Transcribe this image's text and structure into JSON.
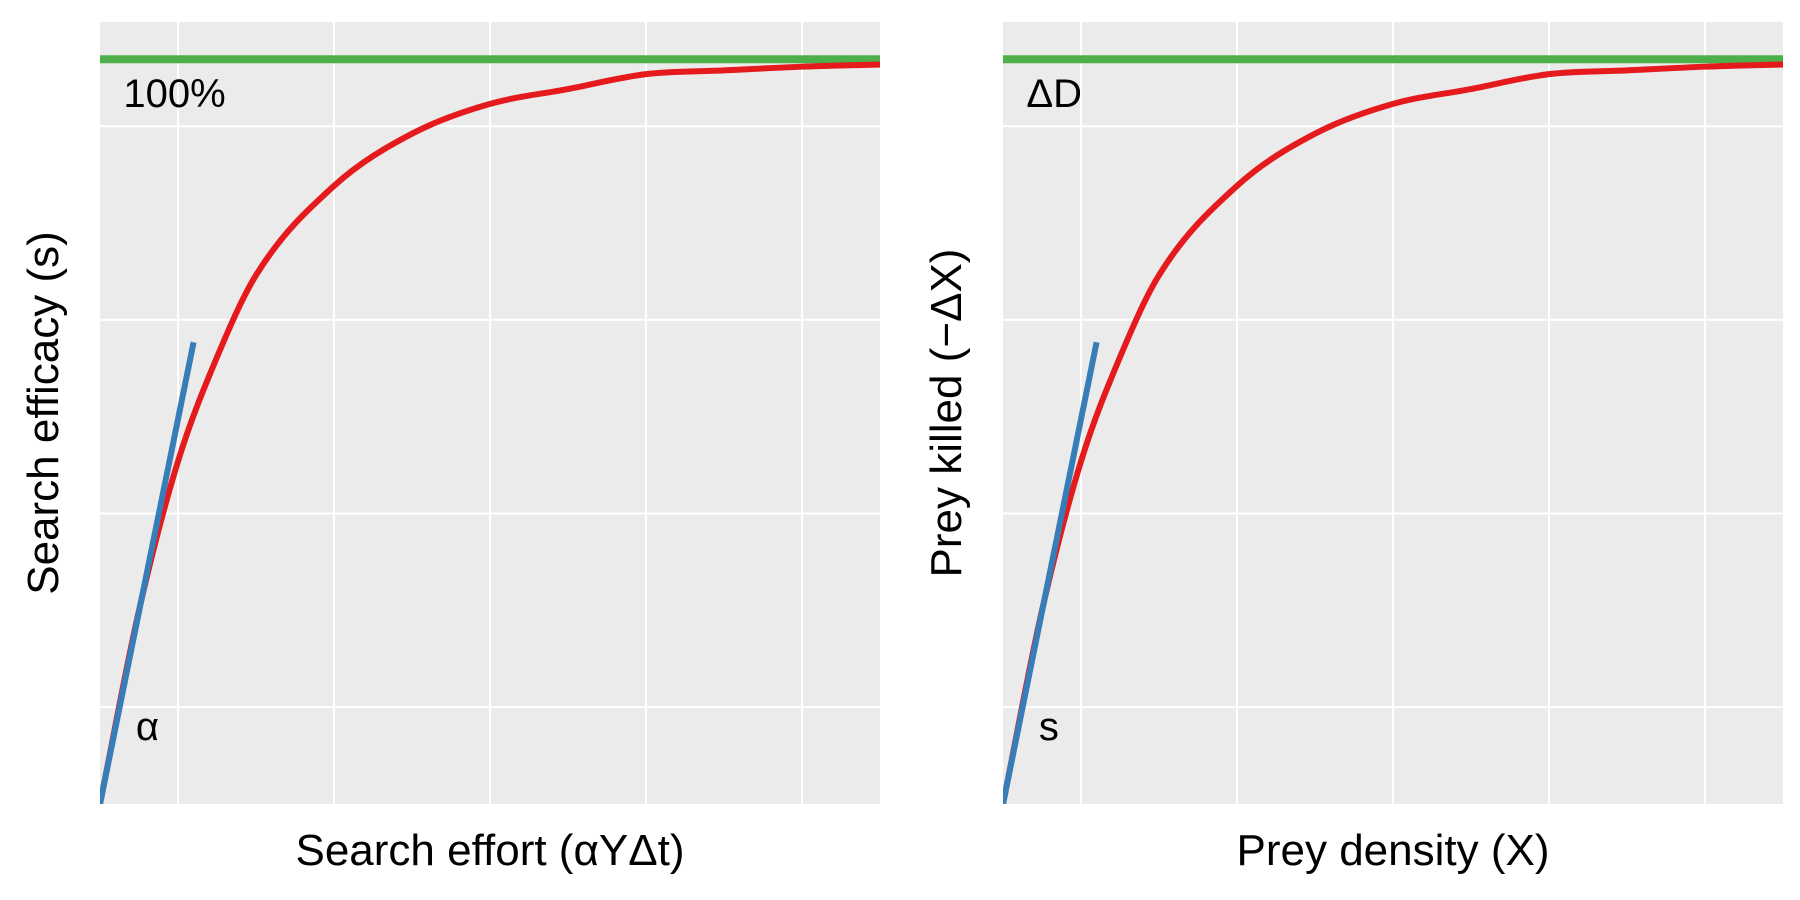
{
  "chart_data": [
    {
      "type": "line",
      "xlabel": "Search effort (αYΔt)",
      "ylabel": "Search efficacy (s)",
      "xlim": [
        0,
        5
      ],
      "ylim": [
        0,
        1.05
      ],
      "grid": true,
      "x_ticks": [
        0.5,
        1.5,
        2.5,
        3.5,
        4.5
      ],
      "y_ticks": [
        0.13,
        0.39,
        0.65,
        0.91
      ],
      "series": [
        {
          "role": "asymptote",
          "color": "#4DAF4A",
          "x": [
            0,
            5
          ],
          "y": [
            1.0,
            1.0
          ]
        },
        {
          "role": "response",
          "color": "#E41A1C",
          "x": [
            0,
            0.25,
            0.5,
            0.75,
            1.0,
            1.5,
            2.0,
            2.5,
            3.0,
            3.5,
            4.0,
            4.5,
            5.0
          ],
          "y": [
            0,
            0.26,
            0.46,
            0.6,
            0.71,
            0.83,
            0.9,
            0.94,
            0.96,
            0.98,
            0.985,
            0.99,
            0.993
          ]
        },
        {
          "role": "initial-slope",
          "color": "#377EB8",
          "x": [
            0,
            0.6
          ],
          "y": [
            0,
            0.62
          ]
        }
      ],
      "annotations": [
        {
          "text": "100%",
          "x": 0.15,
          "y": 0.95
        },
        {
          "text": "α",
          "x": 0.23,
          "y": 0.1
        }
      ]
    },
    {
      "type": "line",
      "xlabel": "Prey density (X)",
      "ylabel": "Prey killed (−ΔX)",
      "xlim": [
        0,
        5
      ],
      "ylim": [
        0,
        1.05
      ],
      "grid": true,
      "x_ticks": [
        0.5,
        1.5,
        2.5,
        3.5,
        4.5
      ],
      "y_ticks": [
        0.13,
        0.39,
        0.65,
        0.91
      ],
      "series": [
        {
          "role": "asymptote",
          "color": "#4DAF4A",
          "x": [
            0,
            5
          ],
          "y": [
            1.0,
            1.0
          ]
        },
        {
          "role": "response",
          "color": "#E41A1C",
          "x": [
            0,
            0.25,
            0.5,
            0.75,
            1.0,
            1.5,
            2.0,
            2.5,
            3.0,
            3.5,
            4.0,
            4.5,
            5.0
          ],
          "y": [
            0,
            0.26,
            0.46,
            0.6,
            0.71,
            0.83,
            0.9,
            0.94,
            0.96,
            0.98,
            0.985,
            0.99,
            0.993
          ]
        },
        {
          "role": "initial-slope",
          "color": "#377EB8",
          "x": [
            0,
            0.6
          ],
          "y": [
            0,
            0.62
          ]
        }
      ],
      "annotations": [
        {
          "text": "ΔD",
          "x": 0.15,
          "y": 0.95
        },
        {
          "text": "s",
          "x": 0.23,
          "y": 0.1
        }
      ]
    }
  ]
}
